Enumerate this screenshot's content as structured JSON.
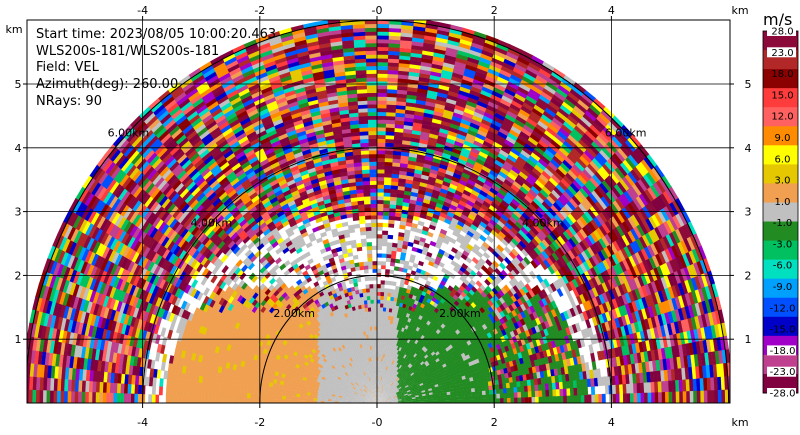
{
  "info": {
    "start_time": "Start time: 2023/08/05 10:00:20.463",
    "instrument": "WLS200s-181/WLS200s-181",
    "field": "Field: VEL",
    "azimuth": "Azimuth(deg): 260.00",
    "nrays": "NRays: 90"
  },
  "chart_data": {
    "type": "heatmap",
    "projection": "RHI half-disk (range-elevation)",
    "xlabel": "km",
    "ylabel": "km",
    "xlim": [
      -6,
      6
    ],
    "ylim": [
      0,
      6
    ],
    "x_ticks": [
      -4,
      -2,
      0,
      2,
      4
    ],
    "x_tick_labels": [
      "-4",
      "-2",
      "-0",
      "2",
      "4"
    ],
    "y_ticks": [
      1,
      2,
      3,
      4,
      5
    ],
    "y_tick_labels": [
      "1",
      "2",
      "3",
      "4",
      "5"
    ],
    "grid": true,
    "max_range_km": 6,
    "range_rings": [
      {
        "km": 2,
        "label": "2.00km"
      },
      {
        "km": 4,
        "label": "4.00km"
      },
      {
        "km": 6,
        "label": "6.00km"
      }
    ],
    "colorbar": {
      "unit": "m/s",
      "ticks": [
        "28.0",
        "23.0",
        "18.0",
        "15.0",
        "12.0",
        "9.0",
        "6.0",
        "3.0",
        "1.0",
        "-1.0",
        "-3.0",
        "-6.0",
        "-9.0",
        "-12.0",
        "-15.0",
        "-18.0",
        "-23.0",
        "-28.0"
      ],
      "colors": [
        "#8b0a3a",
        "#b22828",
        "#8b0000",
        "#ff3c3c",
        "#ff6060",
        "#ff8c00",
        "#ffff00",
        "#e6c800",
        "#f0a050",
        "#c0c0c0",
        "#228b22",
        "#00c060",
        "#00e0c0",
        "#00a0ff",
        "#0050ff",
        "#0000c8",
        "#a000c8",
        "#c04090",
        "#800040"
      ]
    },
    "regions": {
      "left_near_range": "positive velocity 1.0 to 3.0 m/s (orange)",
      "center_near_range": "-1.0 to 1.0 m/s (gray)",
      "right_near_range": "negative velocity -3.0 to -1.0 m/s (green)",
      "far_range": "noise, all bins"
    }
  }
}
